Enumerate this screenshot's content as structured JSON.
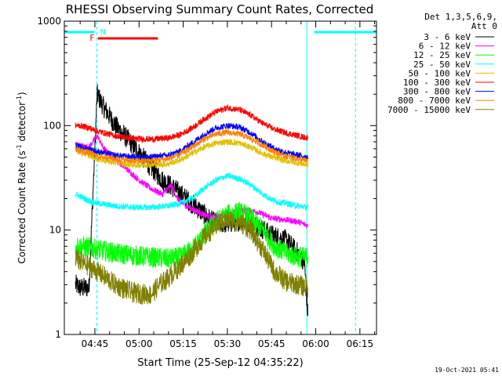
{
  "chart_data": {
    "type": "line",
    "title": "RHESSI Observing Summary Count Rates, Corrected",
    "xlabel": "Start Time (25-Sep-12 04:35:22)",
    "ylabel_main": "Corrected Count Rate (s",
    "ylabel_sup1": "-1",
    "ylabel_mid": " detector",
    "ylabel_sup2": "-1",
    "ylabel_end": ")",
    "ylabel": "Corrected Count Rate (s-1 detector-1)",
    "y_scale": "log",
    "ylim": [
      1,
      1000
    ],
    "x_range_minutes": [
      -5.37,
      100.63
    ],
    "x_ticks": [
      {
        "label": "04:45",
        "minute": 5
      },
      {
        "label": "05:00",
        "minute": 20
      },
      {
        "label": "05:15",
        "minute": 35
      },
      {
        "label": "05:30",
        "minute": 50
      },
      {
        "label": "05:45",
        "minute": 65
      },
      {
        "label": "06:00",
        "minute": 80
      },
      {
        "label": "06:15",
        "minute": 95
      }
    ],
    "y_ticks": [
      {
        "label": "1",
        "value": 1
      },
      {
        "label": "10",
        "value": 10
      },
      {
        "label": "100",
        "value": 100
      },
      {
        "label": "1000",
        "value": 1000
      }
    ],
    "legend_header": [
      "Det 1,3,5,6,9,",
      "Att 0"
    ],
    "legend_placement": "right",
    "series": [
      {
        "name": "3 - 6 keV",
        "color": "#000000",
        "points": [
          [
            -1.6,
            3
          ],
          [
            0,
            2.8
          ],
          [
            3,
            2.8
          ],
          [
            5.8,
            200
          ],
          [
            8,
            150
          ],
          [
            12,
            100
          ],
          [
            16,
            75
          ],
          [
            20,
            55
          ],
          [
            24,
            40
          ],
          [
            28,
            30
          ],
          [
            32,
            25
          ],
          [
            36,
            20
          ],
          [
            40,
            16
          ],
          [
            45,
            12
          ],
          [
            50,
            11.5
          ],
          [
            55,
            12.5
          ],
          [
            60,
            11
          ],
          [
            65,
            9
          ],
          [
            70,
            8
          ],
          [
            74,
            6
          ],
          [
            76.2,
            5
          ],
          [
            77.3,
            1.5
          ]
        ]
      },
      {
        "name": "6 - 12 keV",
        "color": "#ff00ff",
        "points": [
          [
            -1.6,
            68
          ],
          [
            0,
            64
          ],
          [
            3,
            62
          ],
          [
            5.8,
            80
          ],
          [
            8,
            60
          ],
          [
            12,
            48
          ],
          [
            16,
            38
          ],
          [
            20,
            30
          ],
          [
            24,
            25
          ],
          [
            28,
            22
          ],
          [
            31,
            27
          ],
          [
            33,
            20
          ],
          [
            36,
            17
          ],
          [
            40,
            15
          ],
          [
            45,
            13
          ],
          [
            50,
            14
          ],
          [
            55,
            15.5
          ],
          [
            60,
            15
          ],
          [
            65,
            13
          ],
          [
            70,
            12.5
          ],
          [
            74,
            12
          ],
          [
            77.3,
            11
          ]
        ]
      },
      {
        "name": "12 - 25 keV",
        "color": "#00ff00",
        "points": [
          [
            -1.6,
            7
          ],
          [
            0,
            7
          ],
          [
            3,
            6.8
          ],
          [
            6,
            6.5
          ],
          [
            12,
            6
          ],
          [
            18,
            5.7
          ],
          [
            24,
            5.5
          ],
          [
            30,
            5.3
          ],
          [
            34,
            5.5
          ],
          [
            38,
            6.5
          ],
          [
            42,
            9
          ],
          [
            46,
            12
          ],
          [
            50,
            14
          ],
          [
            54,
            15
          ],
          [
            58,
            13
          ],
          [
            62,
            10
          ],
          [
            66,
            7
          ],
          [
            70,
            6
          ],
          [
            74,
            5.5
          ],
          [
            77.3,
            5.5
          ]
        ]
      },
      {
        "name": "25 - 50 keV",
        "color": "#00ffff",
        "points": [
          [
            -1.6,
            22
          ],
          [
            0,
            21
          ],
          [
            3,
            19
          ],
          [
            6,
            18
          ],
          [
            12,
            17
          ],
          [
            18,
            16.5
          ],
          [
            24,
            16.5
          ],
          [
            30,
            17
          ],
          [
            34,
            18
          ],
          [
            38,
            20
          ],
          [
            42,
            25
          ],
          [
            46,
            30
          ],
          [
            50,
            33
          ],
          [
            54,
            31
          ],
          [
            58,
            27
          ],
          [
            62,
            22
          ],
          [
            66,
            19
          ],
          [
            70,
            18
          ],
          [
            74,
            17
          ],
          [
            77.3,
            16.5
          ]
        ]
      },
      {
        "name": "50 - 100 keV",
        "color": "#e0c000",
        "points": [
          [
            -1.6,
            58
          ],
          [
            0,
            56
          ],
          [
            3,
            52
          ],
          [
            6,
            48
          ],
          [
            12,
            44
          ],
          [
            18,
            42
          ],
          [
            24,
            42
          ],
          [
            30,
            43
          ],
          [
            34,
            47
          ],
          [
            38,
            54
          ],
          [
            42,
            62
          ],
          [
            46,
            68
          ],
          [
            50,
            70
          ],
          [
            54,
            68
          ],
          [
            58,
            62
          ],
          [
            62,
            54
          ],
          [
            66,
            49
          ],
          [
            70,
            46
          ],
          [
            74,
            44
          ],
          [
            77.3,
            42
          ]
        ]
      },
      {
        "name": "100 - 300 keV",
        "color": "#ff0000",
        "points": [
          [
            -1.6,
            100
          ],
          [
            0,
            100
          ],
          [
            3,
            95
          ],
          [
            6,
            88
          ],
          [
            12,
            80
          ],
          [
            18,
            75
          ],
          [
            24,
            74
          ],
          [
            30,
            76
          ],
          [
            34,
            82
          ],
          [
            38,
            95
          ],
          [
            42,
            115
          ],
          [
            46,
            135
          ],
          [
            50,
            148
          ],
          [
            54,
            142
          ],
          [
            58,
            125
          ],
          [
            62,
            105
          ],
          [
            66,
            92
          ],
          [
            70,
            85
          ],
          [
            74,
            80
          ],
          [
            77.3,
            76
          ]
        ]
      },
      {
        "name": "300 - 800 keV",
        "color": "#0000ff",
        "points": [
          [
            -1.6,
            65
          ],
          [
            0,
            62
          ],
          [
            3,
            60
          ],
          [
            6,
            56
          ],
          [
            12,
            52
          ],
          [
            18,
            50
          ],
          [
            24,
            50
          ],
          [
            30,
            52
          ],
          [
            34,
            57
          ],
          [
            38,
            68
          ],
          [
            42,
            82
          ],
          [
            46,
            95
          ],
          [
            50,
            100
          ],
          [
            54,
            97
          ],
          [
            58,
            85
          ],
          [
            62,
            70
          ],
          [
            66,
            60
          ],
          [
            70,
            55
          ],
          [
            74,
            52
          ],
          [
            77.3,
            50
          ]
        ]
      },
      {
        "name": "800 - 7000 keV",
        "color": "#ff8000",
        "points": [
          [
            -1.6,
            60
          ],
          [
            0,
            58
          ],
          [
            3,
            55
          ],
          [
            6,
            51
          ],
          [
            12,
            48
          ],
          [
            18,
            46
          ],
          [
            24,
            46
          ],
          [
            30,
            48
          ],
          [
            34,
            53
          ],
          [
            38,
            62
          ],
          [
            42,
            74
          ],
          [
            46,
            83
          ],
          [
            50,
            86
          ],
          [
            54,
            83
          ],
          [
            58,
            75
          ],
          [
            62,
            65
          ],
          [
            66,
            56
          ],
          [
            70,
            51
          ],
          [
            74,
            48
          ],
          [
            77.3,
            46
          ]
        ]
      },
      {
        "name": "7000 - 15000 keV",
        "color": "#808000",
        "points": [
          [
            -1.6,
            5.5
          ],
          [
            0,
            5
          ],
          [
            3,
            4.5
          ],
          [
            6,
            4
          ],
          [
            12,
            3
          ],
          [
            18,
            2.5
          ],
          [
            24,
            2.4
          ],
          [
            27,
            3
          ],
          [
            30,
            3.5
          ],
          [
            34,
            4.5
          ],
          [
            38,
            6
          ],
          [
            42,
            8.5
          ],
          [
            46,
            11
          ],
          [
            50,
            12.5
          ],
          [
            54,
            12
          ],
          [
            58,
            10
          ],
          [
            62,
            6.5
          ],
          [
            66,
            4
          ],
          [
            70,
            3.2
          ],
          [
            74,
            3
          ],
          [
            77.3,
            2.8
          ]
        ]
      }
    ],
    "spacecraft_night": [
      {
        "start_minute": -5.37,
        "end_minute": 4.9
      },
      {
        "start_minute": 79.5,
        "end_minute": 100.63
      }
    ],
    "saa_dashed_lines_minute": [
      5.6,
      93.5
    ],
    "day_boundary_lines_minute": [
      -5.37,
      77.0
    ],
    "flare_flag": {
      "label": "F",
      "start_minute": 6.0,
      "end_minute": 26.4,
      "color": "#ff0000"
    },
    "night_marker_label": "N",
    "timestamp": "19-Oct-2021 05:41"
  }
}
